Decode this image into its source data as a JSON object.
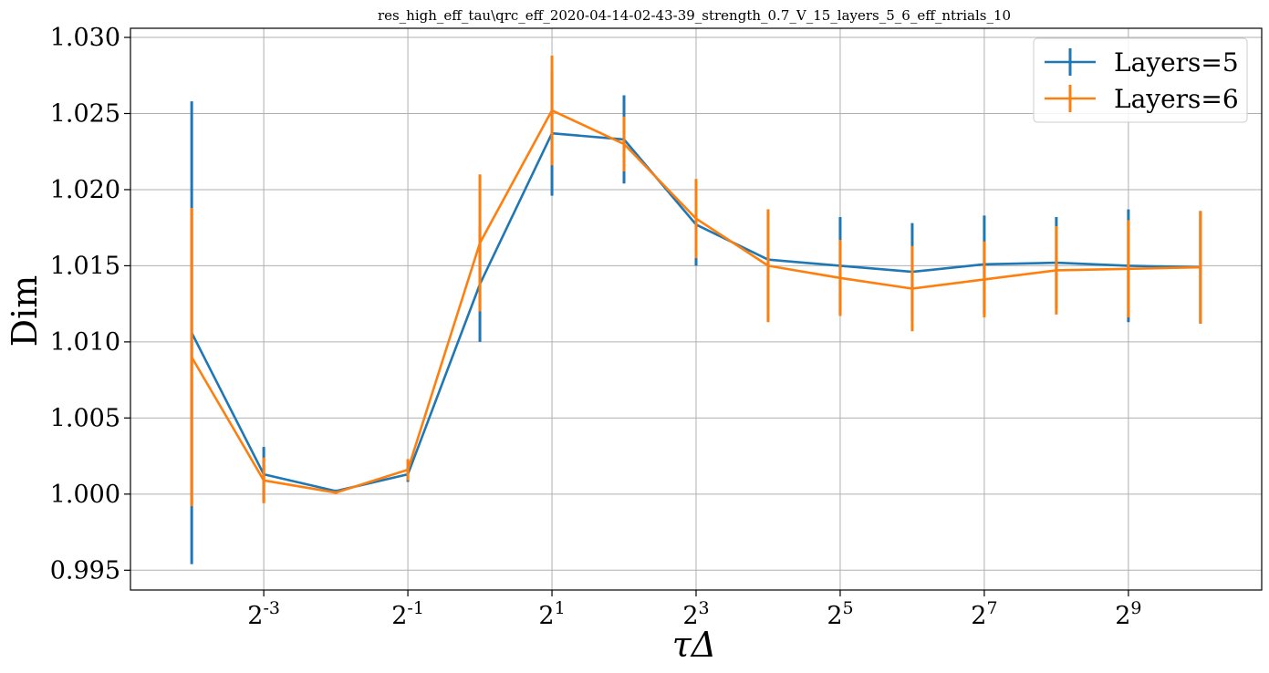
{
  "chart_data": {
    "type": "line",
    "title": "res_high_eff_tau\\qrc_eff_2020-04-14-02-43-39_strength_0.7_V_15_layers_5_6_eff_ntrials_10",
    "xlabel": "τΔ",
    "ylabel": "Dim",
    "x_scale": "log2",
    "x_log2": [
      -4,
      -3,
      -2,
      -1,
      0,
      1,
      2,
      3,
      4,
      5,
      6,
      7,
      8,
      9,
      10
    ],
    "x_ticks": [
      {
        "base": "2",
        "exp": "-3",
        "log2": -3
      },
      {
        "base": "2",
        "exp": "-1",
        "log2": -1
      },
      {
        "base": "2",
        "exp": "1",
        "log2": 1
      },
      {
        "base": "2",
        "exp": "3",
        "log2": 3
      },
      {
        "base": "2",
        "exp": "5",
        "log2": 5
      },
      {
        "base": "2",
        "exp": "7",
        "log2": 7
      },
      {
        "base": "2",
        "exp": "9",
        "log2": 9
      }
    ],
    "y_ticks": [
      "0.995",
      "1.000",
      "1.005",
      "1.010",
      "1.015",
      "1.020",
      "1.025",
      "1.030"
    ],
    "xlim_log2": [
      -4.85,
      10.85
    ],
    "ylim": [
      0.9937,
      1.0306
    ],
    "grid": true,
    "legend_position": "top-right",
    "series": [
      {
        "name": "Layers=5",
        "color": "#1f77b4",
        "values": [
          1.0106,
          1.0013,
          1.0002,
          1.0013,
          1.0138,
          1.0237,
          1.0233,
          1.0177,
          1.0154,
          1.015,
          1.0146,
          1.0151,
          1.0152,
          1.015,
          1.0149
        ],
        "errors": [
          0.0152,
          0.0018,
          0.0001,
          0.0005,
          0.0038,
          0.0041,
          0.0029,
          0.0027,
          0.0033,
          0.0032,
          0.0032,
          0.0032,
          0.003,
          0.0037,
          0.0037
        ]
      },
      {
        "name": "Layers=6",
        "color": "#ff7f0e",
        "values": [
          1.009,
          1.0009,
          1.0001,
          1.0016,
          1.0165,
          1.0252,
          1.023,
          1.0181,
          1.015,
          1.0142,
          1.0135,
          1.0141,
          1.0147,
          1.0148,
          1.0149
        ],
        "errors": [
          0.0098,
          0.0015,
          0.0001,
          0.0007,
          0.0045,
          0.0036,
          0.0018,
          0.0026,
          0.0037,
          0.0025,
          0.0028,
          0.0025,
          0.0029,
          0.0032,
          0.0037
        ]
      }
    ]
  }
}
